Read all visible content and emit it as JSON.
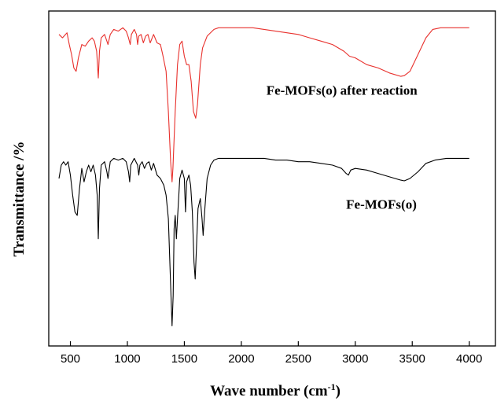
{
  "chart_data": {
    "type": "line",
    "xlabel": "Wave number (cm",
    "xlabel_sup": "-1",
    "xlabel_close": ")",
    "ylabel": "Transmittance /%",
    "xlim": [
      310,
      4230
    ],
    "ylim": [
      0,
      100
    ],
    "xticks": [
      "500",
      "1000",
      "1500",
      "2000",
      "2500",
      "3000",
      "3500",
      "4000"
    ],
    "legend": "none",
    "grid": false,
    "series": [
      {
        "name": "Fe-MOFs(o) after reaction",
        "color": "#e8302c",
        "points": [
          [
            400,
            93
          ],
          [
            430,
            92
          ],
          [
            470,
            93.5
          ],
          [
            490,
            90
          ],
          [
            510,
            87
          ],
          [
            530,
            83
          ],
          [
            550,
            82
          ],
          [
            570,
            86
          ],
          [
            600,
            90
          ],
          [
            630,
            89.5
          ],
          [
            660,
            91
          ],
          [
            690,
            92
          ],
          [
            710,
            91
          ],
          [
            730,
            88
          ],
          [
            745,
            80
          ],
          [
            755,
            88
          ],
          [
            770,
            92
          ],
          [
            800,
            93
          ],
          [
            820,
            91
          ],
          [
            830,
            90
          ],
          [
            850,
            93
          ],
          [
            880,
            94.5
          ],
          [
            920,
            94
          ],
          [
            960,
            95
          ],
          [
            990,
            94
          ],
          [
            1010,
            92
          ],
          [
            1025,
            90
          ],
          [
            1035,
            93
          ],
          [
            1060,
            94.5
          ],
          [
            1080,
            93
          ],
          [
            1090,
            90
          ],
          [
            1100,
            92.5
          ],
          [
            1120,
            93
          ],
          [
            1140,
            90.5
          ],
          [
            1160,
            92.5
          ],
          [
            1180,
            93
          ],
          [
            1200,
            90.5
          ],
          [
            1230,
            93
          ],
          [
            1260,
            90.5
          ],
          [
            1290,
            90
          ],
          [
            1310,
            87
          ],
          [
            1340,
            82
          ],
          [
            1360,
            70
          ],
          [
            1380,
            55
          ],
          [
            1392,
            49
          ],
          [
            1400,
            53
          ],
          [
            1420,
            70
          ],
          [
            1440,
            84
          ],
          [
            1460,
            90
          ],
          [
            1480,
            91
          ],
          [
            1500,
            86.5
          ],
          [
            1520,
            84
          ],
          [
            1540,
            84
          ],
          [
            1560,
            79
          ],
          [
            1580,
            70
          ],
          [
            1600,
            68
          ],
          [
            1615,
            72
          ],
          [
            1640,
            84
          ],
          [
            1660,
            89
          ],
          [
            1700,
            92.5
          ],
          [
            1760,
            94.5
          ],
          [
            1800,
            95
          ],
          [
            1900,
            95
          ],
          [
            2000,
            95
          ],
          [
            2100,
            95
          ],
          [
            2200,
            94.5
          ],
          [
            2300,
            94
          ],
          [
            2400,
            93.5
          ],
          [
            2500,
            93
          ],
          [
            2600,
            92
          ],
          [
            2700,
            91
          ],
          [
            2800,
            90
          ],
          [
            2900,
            88
          ],
          [
            2950,
            86.5
          ],
          [
            3000,
            86
          ],
          [
            3100,
            84
          ],
          [
            3200,
            83
          ],
          [
            3300,
            81.5
          ],
          [
            3400,
            80.5
          ],
          [
            3430,
            80.7
          ],
          [
            3480,
            82
          ],
          [
            3550,
            87
          ],
          [
            3620,
            92
          ],
          [
            3680,
            94.5
          ],
          [
            3750,
            95
          ],
          [
            3850,
            95
          ],
          [
            3950,
            95
          ],
          [
            4000,
            95
          ]
        ]
      },
      {
        "name": "Fe-MOFs(o)",
        "color": "#000000",
        "points": [
          [
            400,
            50
          ],
          [
            420,
            54
          ],
          [
            440,
            55
          ],
          [
            460,
            54
          ],
          [
            480,
            55
          ],
          [
            500,
            51
          ],
          [
            520,
            45
          ],
          [
            540,
            40
          ],
          [
            560,
            39
          ],
          [
            580,
            47
          ],
          [
            600,
            53
          ],
          [
            620,
            49
          ],
          [
            640,
            52
          ],
          [
            660,
            54
          ],
          [
            680,
            52
          ],
          [
            700,
            54
          ],
          [
            720,
            51
          ],
          [
            735,
            45
          ],
          [
            745,
            32
          ],
          [
            755,
            47
          ],
          [
            770,
            54
          ],
          [
            800,
            55
          ],
          [
            820,
            52
          ],
          [
            830,
            50
          ],
          [
            850,
            55
          ],
          [
            880,
            56
          ],
          [
            920,
            55.5
          ],
          [
            960,
            56
          ],
          [
            990,
            55
          ],
          [
            1010,
            52
          ],
          [
            1020,
            49
          ],
          [
            1030,
            54
          ],
          [
            1060,
            56
          ],
          [
            1090,
            54
          ],
          [
            1100,
            51
          ],
          [
            1110,
            54
          ],
          [
            1130,
            55
          ],
          [
            1150,
            53
          ],
          [
            1170,
            54.5
          ],
          [
            1190,
            55
          ],
          [
            1210,
            52.5
          ],
          [
            1230,
            54.5
          ],
          [
            1260,
            51
          ],
          [
            1290,
            50
          ],
          [
            1320,
            48
          ],
          [
            1340,
            45
          ],
          [
            1360,
            38
          ],
          [
            1380,
            18
          ],
          [
            1392,
            6
          ],
          [
            1402,
            15
          ],
          [
            1410,
            35
          ],
          [
            1420,
            39
          ],
          [
            1430,
            32
          ],
          [
            1440,
            38
          ],
          [
            1460,
            50
          ],
          [
            1480,
            52.5
          ],
          [
            1500,
            50
          ],
          [
            1510,
            40
          ],
          [
            1520,
            49
          ],
          [
            1540,
            51
          ],
          [
            1555,
            48
          ],
          [
            1570,
            40
          ],
          [
            1585,
            25
          ],
          [
            1595,
            20
          ],
          [
            1605,
            28
          ],
          [
            1620,
            41
          ],
          [
            1640,
            44
          ],
          [
            1655,
            38
          ],
          [
            1665,
            33
          ],
          [
            1680,
            41
          ],
          [
            1700,
            50
          ],
          [
            1730,
            54
          ],
          [
            1760,
            55.5
          ],
          [
            1800,
            56
          ],
          [
            1900,
            56
          ],
          [
            2000,
            56
          ],
          [
            2100,
            56
          ],
          [
            2200,
            56
          ],
          [
            2300,
            55.5
          ],
          [
            2400,
            55.5
          ],
          [
            2500,
            55
          ],
          [
            2600,
            55
          ],
          [
            2700,
            54.5
          ],
          [
            2800,
            54
          ],
          [
            2880,
            53
          ],
          [
            2920,
            51.5
          ],
          [
            2940,
            51
          ],
          [
            2960,
            52.5
          ],
          [
            3000,
            53
          ],
          [
            3100,
            52.5
          ],
          [
            3200,
            51.5
          ],
          [
            3300,
            50.5
          ],
          [
            3400,
            49.5
          ],
          [
            3430,
            49.3
          ],
          [
            3480,
            50
          ],
          [
            3550,
            52
          ],
          [
            3620,
            54.5
          ],
          [
            3700,
            55.5
          ],
          [
            3800,
            56
          ],
          [
            3900,
            56
          ],
          [
            4000,
            56
          ]
        ]
      }
    ],
    "annotations": [
      {
        "text": "Fe-MOFs(o) after reaction",
        "x": 2220,
        "y": 75
      },
      {
        "text": "Fe-MOFs(o)",
        "x": 2920,
        "y": 41
      }
    ]
  }
}
